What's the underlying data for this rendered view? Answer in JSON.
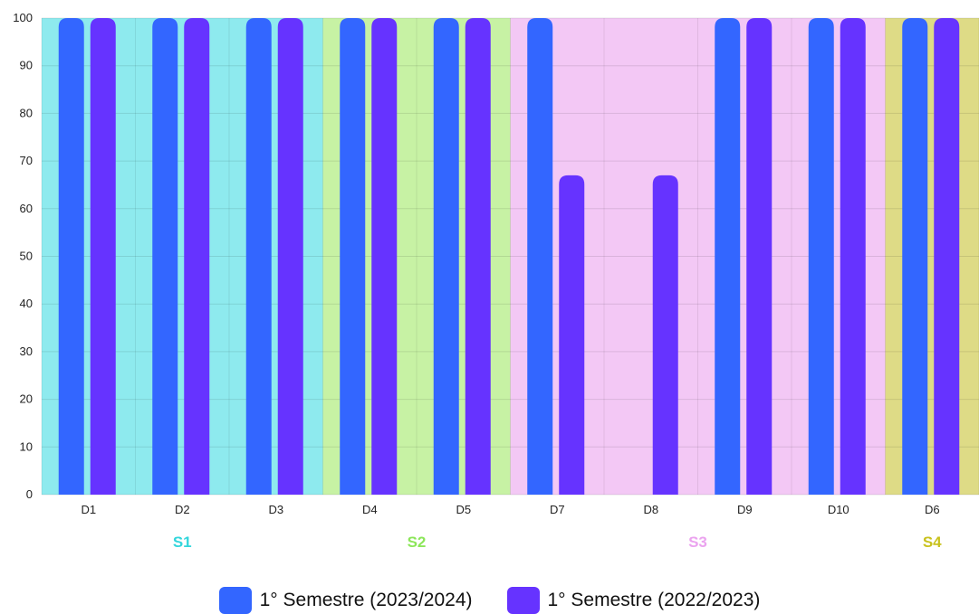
{
  "chart_data": {
    "type": "bar",
    "categories": [
      "D1",
      "D2",
      "D3",
      "D4",
      "D5",
      "D7",
      "D8",
      "D9",
      "D10",
      "D6"
    ],
    "series": [
      {
        "name": "1° Semestre (2023/2024)",
        "color": "#3366ff",
        "values": [
          100,
          100,
          100,
          100,
          100,
          100,
          0,
          100,
          100,
          100
        ]
      },
      {
        "name": "1° Semestre (2022/2023)",
        "color": "#6633ff",
        "values": [
          100,
          100,
          100,
          100,
          100,
          67,
          67,
          100,
          100,
          100
        ]
      }
    ],
    "groups": [
      {
        "label": "S1",
        "categories": [
          "D1",
          "D2",
          "D3"
        ],
        "background": "#8eeaee",
        "label_color": "#33d6dc"
      },
      {
        "label": "S2",
        "categories": [
          "D4",
          "D5"
        ],
        "background": "#c7f2a4",
        "label_color": "#8ce65a"
      },
      {
        "label": "S3",
        "categories": [
          "D7",
          "D8",
          "D9",
          "D10"
        ],
        "background": "#f3c8f5",
        "label_color": "#eba3ef"
      },
      {
        "label": "S4",
        "categories": [
          "D6"
        ],
        "background": "#dedb86",
        "label_color": "#c9c21e"
      }
    ],
    "yticks": [
      "0",
      "10",
      "20",
      "30",
      "40",
      "50",
      "60",
      "70",
      "80",
      "90",
      "100"
    ],
    "ylim": [
      0,
      100
    ],
    "grid": true,
    "legend_position": "bottom"
  }
}
